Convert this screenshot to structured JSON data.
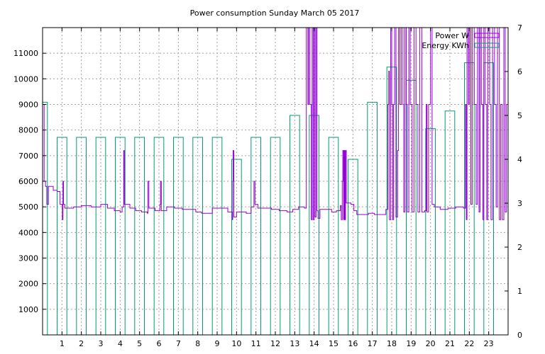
{
  "chart_data": {
    "type": "line",
    "title": "Power consumption Sunday March 05 2017",
    "xlabel": "",
    "ylabel": "",
    "y2label": "",
    "xlim": [
      0,
      24
    ],
    "ylim": [
      0,
      12000
    ],
    "y2lim": [
      0,
      7
    ],
    "grid": true,
    "legend_position": "top-right",
    "x_ticks": [
      1,
      2,
      3,
      4,
      5,
      6,
      7,
      8,
      9,
      10,
      11,
      12,
      13,
      14,
      15,
      16,
      17,
      18,
      19,
      20,
      21,
      22,
      23
    ],
    "y_ticks": [
      1000,
      2000,
      3000,
      4000,
      5000,
      6000,
      7000,
      8000,
      9000,
      10000,
      11000
    ],
    "y2_ticks": [
      0,
      1,
      2,
      3,
      4,
      5,
      6,
      7
    ],
    "colors": {
      "power": "#9400d3",
      "energy": "#009e73"
    },
    "series": [
      {
        "name": "Power W",
        "axis": "y",
        "style": "steps",
        "points": [
          [
            0.0,
            9000
          ],
          [
            0.08,
            6000
          ],
          [
            0.15,
            5800
          ],
          [
            0.22,
            5100
          ],
          [
            0.3,
            5800
          ],
          [
            0.55,
            5650
          ],
          [
            0.75,
            5600
          ],
          [
            0.9,
            5100
          ],
          [
            1.02,
            4500
          ],
          [
            1.05,
            6000
          ],
          [
            1.08,
            5100
          ],
          [
            1.15,
            4950
          ],
          [
            1.35,
            4950
          ],
          [
            1.6,
            5000
          ],
          [
            2.0,
            5050
          ],
          [
            2.5,
            5000
          ],
          [
            3.0,
            5100
          ],
          [
            3.35,
            4950
          ],
          [
            3.7,
            4850
          ],
          [
            4.0,
            4800
          ],
          [
            4.1,
            5000
          ],
          [
            4.18,
            7200
          ],
          [
            4.22,
            5100
          ],
          [
            4.5,
            4950
          ],
          [
            4.8,
            4850
          ],
          [
            5.1,
            4800
          ],
          [
            5.4,
            4750
          ],
          [
            5.43,
            6000
          ],
          [
            5.48,
            4950
          ],
          [
            5.8,
            4850
          ],
          [
            6.05,
            5100
          ],
          [
            6.08,
            6000
          ],
          [
            6.12,
            4850
          ],
          [
            6.4,
            5000
          ],
          [
            6.8,
            4950
          ],
          [
            7.2,
            4900
          ],
          [
            7.6,
            4900
          ],
          [
            7.9,
            4800
          ],
          [
            8.2,
            4750
          ],
          [
            8.5,
            4750
          ],
          [
            8.75,
            4950
          ],
          [
            9.1,
            4950
          ],
          [
            9.55,
            4800
          ],
          [
            9.78,
            4500
          ],
          [
            9.8,
            6000
          ],
          [
            9.82,
            7200
          ],
          [
            9.86,
            4600
          ],
          [
            10.0,
            4800
          ],
          [
            10.3,
            4800
          ],
          [
            10.5,
            4750
          ],
          [
            10.75,
            5000
          ],
          [
            10.9,
            6000
          ],
          [
            10.95,
            5100
          ],
          [
            11.1,
            4950
          ],
          [
            11.4,
            4950
          ],
          [
            11.8,
            4900
          ],
          [
            12.2,
            4850
          ],
          [
            12.6,
            4800
          ],
          [
            12.9,
            4900
          ],
          [
            13.2,
            5000
          ],
          [
            13.5,
            4950
          ],
          [
            13.6,
            12000
          ],
          [
            13.68,
            9000
          ],
          [
            13.72,
            12000
          ],
          [
            13.78,
            9000
          ],
          [
            13.85,
            4500
          ],
          [
            13.9,
            12000
          ],
          [
            13.95,
            4500
          ],
          [
            14.0,
            12000
          ],
          [
            14.05,
            4600
          ],
          [
            14.1,
            12000
          ],
          [
            14.15,
            4850
          ],
          [
            14.2,
            4550
          ],
          [
            14.3,
            4900
          ],
          [
            14.6,
            4900
          ],
          [
            14.9,
            4800
          ],
          [
            15.15,
            4850
          ],
          [
            15.35,
            5050
          ],
          [
            15.4,
            4500
          ],
          [
            15.45,
            6000
          ],
          [
            15.48,
            7200
          ],
          [
            15.52,
            4500
          ],
          [
            15.55,
            7200
          ],
          [
            15.58,
            4500
          ],
          [
            15.62,
            7200
          ],
          [
            15.66,
            5150
          ],
          [
            15.9,
            5100
          ],
          [
            16.05,
            4850
          ],
          [
            16.2,
            4700
          ],
          [
            16.5,
            4700
          ],
          [
            16.8,
            4750
          ],
          [
            17.1,
            4700
          ],
          [
            17.4,
            4700
          ],
          [
            17.7,
            4900
          ],
          [
            17.8,
            9000
          ],
          [
            17.85,
            10300
          ],
          [
            17.88,
            4500
          ],
          [
            17.95,
            12000
          ],
          [
            18.0,
            9000
          ],
          [
            18.05,
            4500
          ],
          [
            18.1,
            9000
          ],
          [
            18.15,
            12000
          ],
          [
            18.22,
            4600
          ],
          [
            18.3,
            7200
          ],
          [
            18.35,
            12000
          ],
          [
            18.42,
            9000
          ],
          [
            18.5,
            12000
          ],
          [
            18.58,
            9000
          ],
          [
            18.62,
            4800
          ],
          [
            18.68,
            12000
          ],
          [
            18.75,
            9000
          ],
          [
            18.8,
            4800
          ],
          [
            18.88,
            12000
          ],
          [
            18.95,
            9000
          ],
          [
            19.05,
            4800
          ],
          [
            19.15,
            12000
          ],
          [
            19.25,
            9000
          ],
          [
            19.35,
            4800
          ],
          [
            19.45,
            12000
          ],
          [
            19.55,
            4800
          ],
          [
            19.7,
            4850
          ],
          [
            19.78,
            9000
          ],
          [
            19.82,
            4800
          ],
          [
            19.9,
            9000
          ],
          [
            20.0,
            12000
          ],
          [
            20.08,
            5100
          ],
          [
            20.2,
            5000
          ],
          [
            20.5,
            4900
          ],
          [
            20.9,
            4950
          ],
          [
            21.3,
            5000
          ],
          [
            21.7,
            4950
          ],
          [
            21.8,
            9000
          ],
          [
            21.84,
            4500
          ],
          [
            21.88,
            12000
          ],
          [
            21.95,
            9000
          ],
          [
            22.0,
            12000
          ],
          [
            22.08,
            5100
          ],
          [
            22.15,
            12000
          ],
          [
            22.25,
            9000
          ],
          [
            22.35,
            5100
          ],
          [
            22.42,
            12000
          ],
          [
            22.5,
            4800
          ],
          [
            22.55,
            12000
          ],
          [
            22.62,
            9000
          ],
          [
            22.7,
            4500
          ],
          [
            22.75,
            12000
          ],
          [
            22.82,
            9000
          ],
          [
            22.9,
            4500
          ],
          [
            22.95,
            12000
          ],
          [
            23.05,
            9000
          ],
          [
            23.12,
            4500
          ],
          [
            23.2,
            12000
          ],
          [
            23.3,
            9000
          ],
          [
            23.38,
            5000
          ],
          [
            23.45,
            12000
          ],
          [
            23.55,
            4500
          ],
          [
            23.62,
            9000
          ],
          [
            23.7,
            4500
          ],
          [
            23.78,
            12000
          ],
          [
            23.85,
            4800
          ],
          [
            23.92,
            9000
          ],
          [
            24.0,
            4800
          ]
        ]
      },
      {
        "name": "Energy KWh",
        "axis": "y2",
        "style": "steps",
        "points": [
          [
            0.0,
            5.3
          ],
          [
            0.25,
            0
          ],
          [
            0.75,
            4.5
          ],
          [
            1.25,
            0
          ],
          [
            1.75,
            4.5
          ],
          [
            2.25,
            0
          ],
          [
            2.75,
            4.5
          ],
          [
            3.25,
            0
          ],
          [
            3.75,
            4.5
          ],
          [
            4.25,
            0
          ],
          [
            4.75,
            4.5
          ],
          [
            5.25,
            0
          ],
          [
            5.75,
            4.5
          ],
          [
            6.25,
            0
          ],
          [
            6.75,
            4.5
          ],
          [
            7.25,
            0
          ],
          [
            7.75,
            4.5
          ],
          [
            8.25,
            0
          ],
          [
            8.75,
            4.5
          ],
          [
            9.25,
            0
          ],
          [
            9.75,
            4.0
          ],
          [
            10.25,
            0
          ],
          [
            10.75,
            4.5
          ],
          [
            11.25,
            0
          ],
          [
            11.75,
            4.5
          ],
          [
            12.25,
            0
          ],
          [
            12.75,
            5.0
          ],
          [
            13.25,
            0
          ],
          [
            13.75,
            5.0
          ],
          [
            14.25,
            0
          ],
          [
            14.75,
            4.5
          ],
          [
            15.25,
            0
          ],
          [
            15.75,
            4.0
          ],
          [
            16.25,
            0
          ],
          [
            16.75,
            5.3
          ],
          [
            17.25,
            0
          ],
          [
            17.75,
            6.1
          ],
          [
            18.25,
            0
          ],
          [
            18.75,
            5.8
          ],
          [
            19.25,
            0
          ],
          [
            19.75,
            4.7
          ],
          [
            20.25,
            0
          ],
          [
            20.75,
            5.1
          ],
          [
            21.25,
            0
          ],
          [
            21.75,
            6.2
          ],
          [
            22.25,
            0
          ],
          [
            22.75,
            6.2
          ],
          [
            23.25,
            0
          ],
          [
            23.75,
            0
          ]
        ]
      }
    ]
  }
}
